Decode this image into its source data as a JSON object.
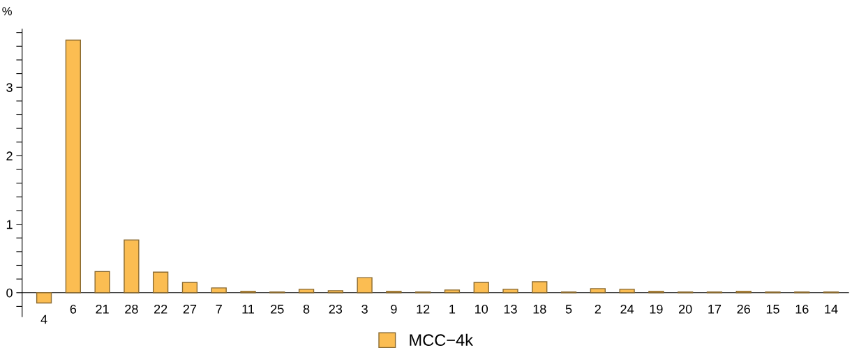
{
  "chart_data": {
    "type": "bar",
    "ylabel": "%",
    "categories": [
      "4",
      "6",
      "21",
      "28",
      "22",
      "27",
      "7",
      "11",
      "25",
      "8",
      "23",
      "3",
      "9",
      "12",
      "1",
      "10",
      "13",
      "18",
      "5",
      "2",
      "24",
      "19",
      "20",
      "17",
      "26",
      "15",
      "16",
      "14"
    ],
    "series": [
      {
        "name": "MCC−4k",
        "color": "#fbbd52",
        "values": [
          -0.15,
          3.69,
          0.31,
          0.77,
          0.3,
          0.15,
          0.07,
          0.02,
          0.01,
          0.05,
          0.03,
          0.22,
          0.02,
          0.01,
          0.04,
          0.15,
          0.05,
          0.16,
          0.01,
          0.06,
          0.05,
          0.02,
          0.01,
          0.01,
          0.02,
          0.01,
          0.01,
          0.01
        ]
      }
    ],
    "ylim": [
      -0.35,
      3.85
    ],
    "yticks": [
      {
        "value": -0.2,
        "label": null
      },
      0,
      {
        "value": 0.2,
        "label": null
      },
      {
        "value": 0.4,
        "label": null
      },
      {
        "value": 0.6,
        "label": null
      },
      {
        "value": 0.8,
        "label": null
      },
      1,
      {
        "value": 1.2,
        "label": null
      },
      {
        "value": 1.4,
        "label": null
      },
      {
        "value": 1.6,
        "label": null
      },
      {
        "value": 1.8,
        "label": null
      },
      2,
      {
        "value": 2.2,
        "label": null
      },
      {
        "value": 2.4,
        "label": null
      },
      {
        "value": 2.6,
        "label": null
      },
      {
        "value": 2.8,
        "label": null
      },
      3,
      {
        "value": 3.2,
        "label": null
      },
      {
        "value": 3.4,
        "label": null
      },
      {
        "value": 3.6,
        "label": null
      },
      {
        "value": 3.8,
        "label": null
      }
    ],
    "grid": false,
    "legend": "bottom"
  }
}
